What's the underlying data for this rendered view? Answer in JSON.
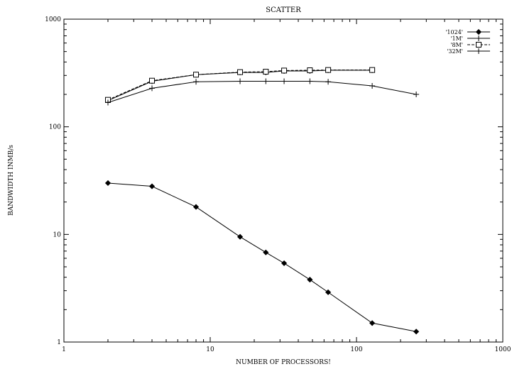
{
  "chart_data": {
    "type": "line",
    "title": "SCATTER",
    "xlabel": "NUMBER OF PROCESSORS!",
    "ylabel": "BANDWIDTH INMB/s",
    "x_scale": "log",
    "y_scale": "log",
    "xlim": [
      1,
      1000
    ],
    "ylim": [
      1,
      1000
    ],
    "x_ticks": [
      1,
      10,
      100,
      1000
    ],
    "y_ticks": [
      1,
      10,
      100,
      1000
    ],
    "x_tick_labels": [
      "1",
      "10",
      "100",
      "1000"
    ],
    "y_tick_labels": [
      "1",
      "10",
      "100",
      "1000"
    ],
    "grid": false,
    "legend_position": "top-right",
    "series": [
      {
        "name": "'1024'",
        "marker": "diamond",
        "line": "solid",
        "x": [
          2,
          4,
          8,
          16,
          24,
          32,
          48,
          64,
          128,
          256
        ],
        "y": [
          30,
          28,
          18,
          9.5,
          6.8,
          5.4,
          3.8,
          2.9,
          1.5,
          1.25
        ]
      },
      {
        "name": "'1M'",
        "marker": "plus",
        "line": "solid",
        "x": [
          2,
          4,
          8,
          16,
          24,
          32,
          48,
          64,
          128
        ],
        "y": [
          175,
          265,
          305,
          320,
          320,
          330,
          330,
          335,
          335
        ]
      },
      {
        "name": "'8M'",
        "marker": "square",
        "line": "dashed",
        "x": [
          2,
          4,
          8,
          16,
          24,
          32,
          48,
          64,
          128
        ],
        "y": [
          178,
          268,
          305,
          322,
          325,
          333,
          335,
          337,
          337
        ]
      },
      {
        "name": "'32M'",
        "marker": "plus",
        "line": "solid",
        "x": [
          2,
          4,
          8,
          16,
          24,
          32,
          48,
          64,
          128,
          256
        ],
        "y": [
          168,
          228,
          262,
          265,
          265,
          265,
          265,
          262,
          240,
          200
        ]
      }
    ]
  }
}
